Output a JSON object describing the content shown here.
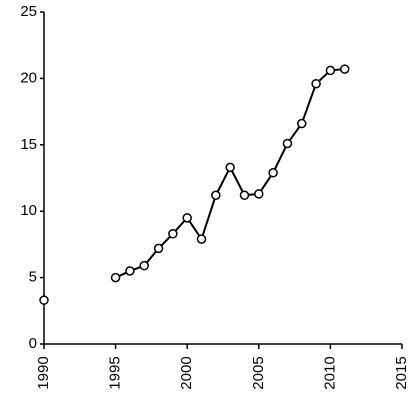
{
  "chart_data": {
    "type": "line",
    "x": [
      1990,
      1991,
      1992,
      1993,
      1994,
      1995,
      1996,
      1997,
      1998,
      1999,
      2000,
      2001,
      2002,
      2003,
      2004,
      2005,
      2006,
      2007,
      2008,
      2009,
      2010,
      2011
    ],
    "series": [
      {
        "color": "#000000",
        "values": [
          3.3,
          null,
          null,
          null,
          null,
          5.0,
          5.5,
          5.9,
          7.2,
          8.3,
          9.5,
          7.9,
          11.2,
          13.3,
          11.2,
          11.3,
          12.9,
          15.1,
          16.6,
          19.6,
          20.6,
          20.7
        ]
      }
    ],
    "xlim": [
      1990,
      2015
    ],
    "xticks": [
      1990,
      1995,
      2000,
      2005,
      2010,
      2015
    ],
    "ylim": [
      0,
      25
    ],
    "yticks": [
      0,
      5,
      10,
      15,
      20,
      25
    ],
    "grid": false
  }
}
